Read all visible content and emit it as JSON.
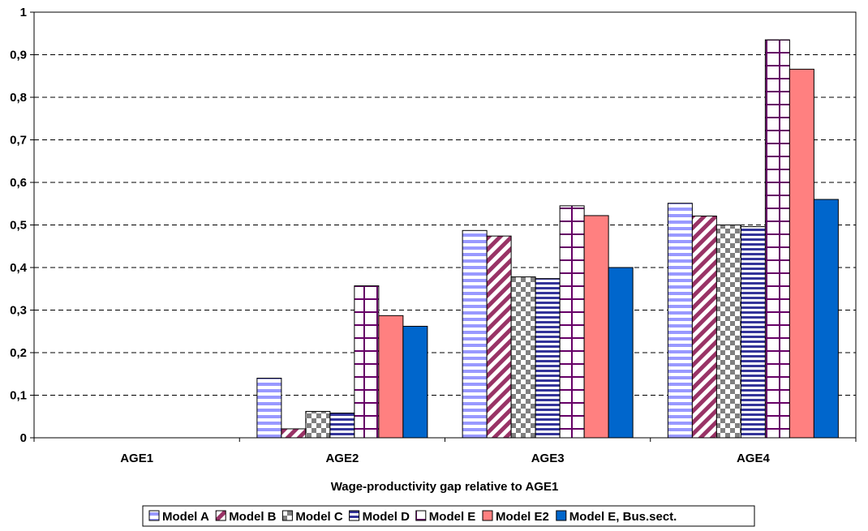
{
  "chart_data": {
    "type": "bar",
    "title": "",
    "xlabel": "Wage-productivity gap relative to AGE1",
    "ylabel": "",
    "categories": [
      "AGE1",
      "AGE2",
      "AGE3",
      "AGE4"
    ],
    "ylim": [
      0,
      1
    ],
    "yticks": [
      "0",
      "0,1",
      "0,2",
      "0,3",
      "0,4",
      "0,5",
      "0,6",
      "0,7",
      "0,8",
      "0,9",
      "1"
    ],
    "grid": "horizontal dashed",
    "legend_position": "bottom",
    "series": [
      {
        "name": "Model A",
        "values": [
          0,
          0.14,
          0.487,
          0.551
        ],
        "pattern": "horizontal-stripes",
        "color": "#9999ff"
      },
      {
        "name": "Model B",
        "values": [
          0,
          0.021,
          0.474,
          0.521
        ],
        "pattern": "diagonal-stripes",
        "color": "#993366"
      },
      {
        "name": "Model C",
        "values": [
          0,
          0.062,
          0.378,
          0.5
        ],
        "pattern": "checkerboard",
        "color": "#808080"
      },
      {
        "name": "Model D",
        "values": [
          0,
          0.058,
          0.374,
          0.496
        ],
        "pattern": "horizontal-stripes-dark",
        "color": "#333399"
      },
      {
        "name": "Model E",
        "values": [
          0,
          0.357,
          0.545,
          0.935
        ],
        "pattern": "grid",
        "color": "#660066"
      },
      {
        "name": "Model E2",
        "values": [
          0,
          0.287,
          0.522,
          0.866
        ],
        "pattern": "solid",
        "color": "#ff8080"
      },
      {
        "name": "Model E, Bus.sect.",
        "values": [
          0,
          0.262,
          0.4,
          0.56
        ],
        "pattern": "solid",
        "color": "#0066cc"
      }
    ]
  }
}
